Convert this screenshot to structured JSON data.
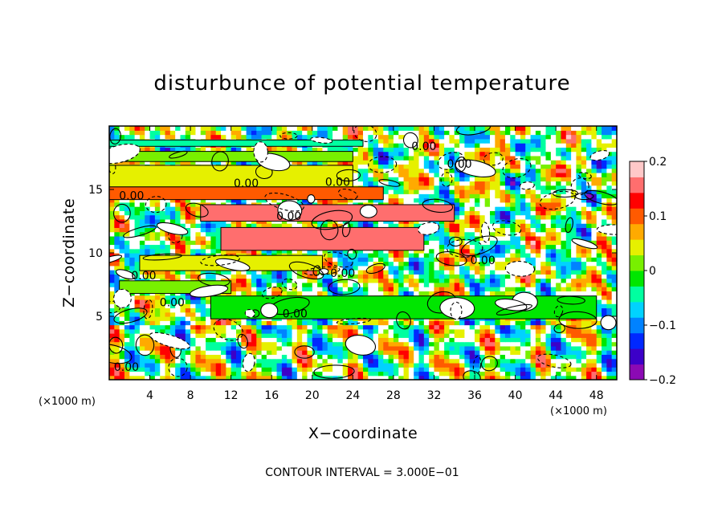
{
  "chart_data": {
    "type": "heatmap",
    "title": "disturbunce of potential temperature",
    "xlabel": "X−coordinate",
    "ylabel": "Z−coordinate",
    "x_unit": "(×1000 m)",
    "y_unit": "(×1000 m)",
    "xlim": [
      0,
      50
    ],
    "ylim": [
      0,
      20
    ],
    "x_ticks": [
      4,
      8,
      12,
      16,
      20,
      24,
      28,
      32,
      36,
      40,
      44,
      48
    ],
    "y_ticks": [
      5,
      10,
      15
    ],
    "colorbar": {
      "range": [
        -0.2,
        0.2
      ],
      "tick_values": [
        0.2,
        0.1,
        0,
        -0.1,
        -0.2
      ],
      "tick_labels": [
        "0.2",
        "0.1",
        "0",
        "−0.1",
        "−0.2"
      ],
      "colors": [
        "#8b0ab4",
        "#3c00c8",
        "#0028ff",
        "#0082ff",
        "#00d2ff",
        "#00ffa0",
        "#00e600",
        "#78f000",
        "#e6f000",
        "#ffaa00",
        "#ff5a00",
        "#ff0000",
        "#ff6e6e",
        "#ffc8c8"
      ]
    },
    "contour_label": "0.00",
    "contour_labels": [
      {
        "x": 31,
        "y": 18.1,
        "text": "0.00"
      },
      {
        "x": 34.5,
        "y": 16.7,
        "text": "0.00"
      },
      {
        "x": 13.5,
        "y": 15.2,
        "text": "0.00"
      },
      {
        "x": 22.5,
        "y": 15.3,
        "text": "0.00"
      },
      {
        "x": 2.2,
        "y": 14.2,
        "text": "0.00"
      },
      {
        "x": 17.7,
        "y": 12.6,
        "text": "0.00"
      },
      {
        "x": 36.8,
        "y": 9.1,
        "text": "0.00"
      },
      {
        "x": 3.4,
        "y": 7.9,
        "text": "0.00"
      },
      {
        "x": 23,
        "y": 8.1,
        "text": "0.00"
      },
      {
        "x": 6.2,
        "y": 5.8,
        "text": "0.00"
      },
      {
        "x": 18.3,
        "y": 4.9,
        "text": "0.00"
      },
      {
        "x": 1.7,
        "y": 0.7,
        "text": "0.00"
      }
    ],
    "bands": [
      {
        "z": [
          18.4,
          18.9
        ],
        "x": [
          0,
          25
        ],
        "value": -0.05
      },
      {
        "z": [
          17.2,
          18.0
        ],
        "x": [
          0,
          24
        ],
        "value": 0.01
      },
      {
        "z": [
          15.2,
          16.9
        ],
        "x": [
          0,
          24
        ],
        "value": 0.04
      },
      {
        "z": [
          14.2,
          15.2
        ],
        "x": [
          0,
          27
        ],
        "value": 0.11
      },
      {
        "z": [
          12.5,
          13.8
        ],
        "x": [
          9,
          34
        ],
        "value": 0.17
      },
      {
        "z": [
          10.2,
          12.0
        ],
        "x": [
          11,
          31
        ],
        "value": 0.15
      },
      {
        "z": [
          8.6,
          9.8
        ],
        "x": [
          3,
          21
        ],
        "value": 0.04
      },
      {
        "z": [
          6.8,
          7.8
        ],
        "x": [
          1,
          12
        ],
        "value": 0.02
      },
      {
        "z": [
          4.8,
          6.6
        ],
        "x": [
          10,
          48
        ],
        "value": -0.01
      }
    ]
  },
  "footer": {
    "contour_interval": "CONTOUR INTERVAL = 3.000E−01"
  }
}
